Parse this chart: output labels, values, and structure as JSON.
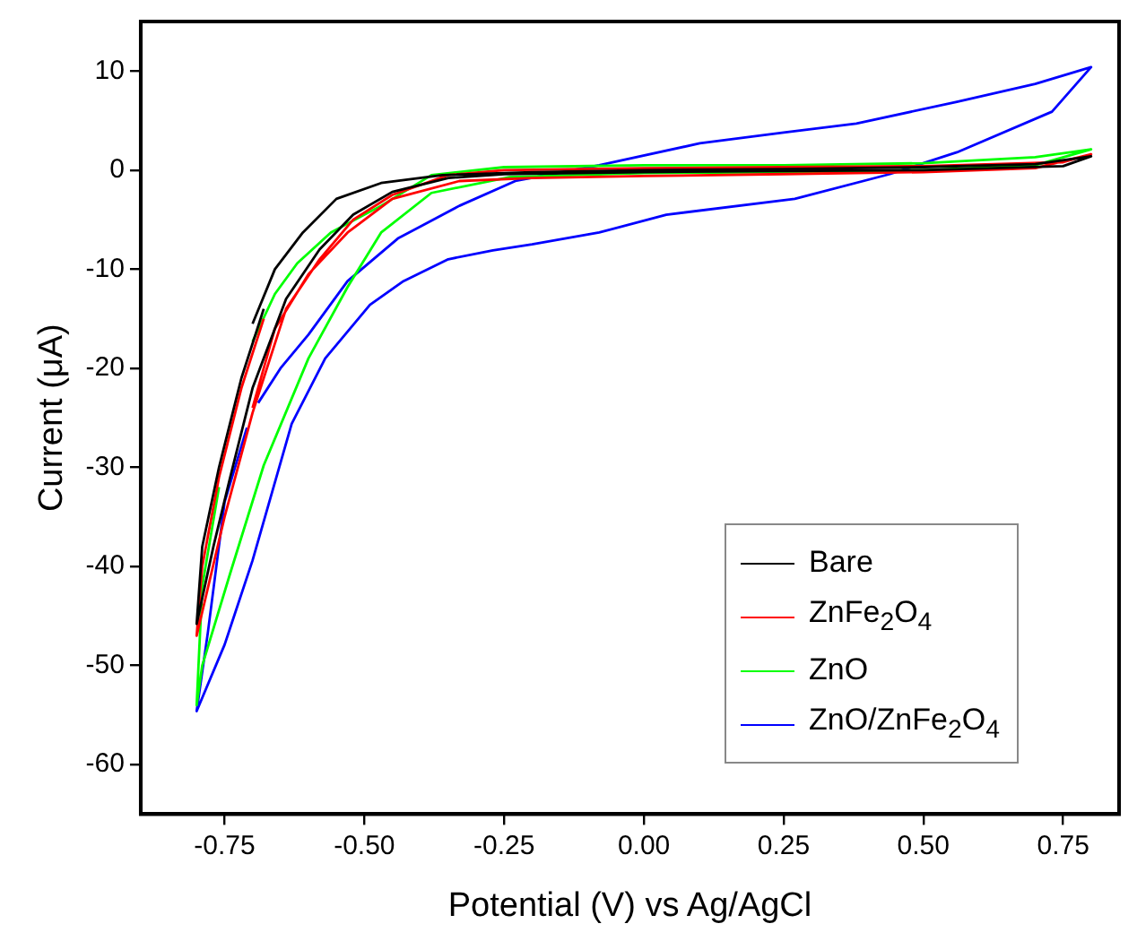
{
  "chart_data": {
    "type": "line",
    "xlabel": "Potential (V) vs Ag/AgCl",
    "ylabel": "Current (μA)",
    "xlim": [
      -0.9,
      0.85
    ],
    "ylim": [
      -65,
      15
    ],
    "xticks": [
      {
        "value": -0.75,
        "label": "-0.75"
      },
      {
        "value": -0.5,
        "label": "-0.50"
      },
      {
        "value": -0.25,
        "label": "-0.25"
      },
      {
        "value": 0,
        "label": "0.00"
      },
      {
        "value": 0.25,
        "label": "0.25"
      },
      {
        "value": 0.5,
        "label": "0.50"
      },
      {
        "value": 0.75,
        "label": "0.75"
      }
    ],
    "yticks": [
      -60,
      -50,
      -40,
      -30,
      -20,
      -10,
      0,
      10
    ],
    "grid": false,
    "legend": "bottom right",
    "marker": "none",
    "line_style": "solid",
    "series": [
      {
        "name": "Bare",
        "color": "#000000",
        "x": [
          -0.7,
          -0.66,
          -0.61,
          -0.55,
          -0.47,
          -0.36,
          -0.2,
          0,
          0.25,
          0.5,
          0.7,
          0.8,
          0.75,
          0.5,
          0.25,
          0,
          -0.25,
          -0.35,
          -0.45,
          -0.52,
          -0.58,
          -0.64,
          -0.7,
          -0.74,
          -0.77,
          -0.8,
          -0.79,
          -0.76,
          -0.72,
          -0.68
        ],
        "values": [
          -15.5,
          -10,
          -6.3,
          -2.9,
          -1.3,
          -0.5,
          -0.2,
          0,
          0.1,
          0.3,
          0.6,
          1.4,
          0.4,
          0,
          -0.1,
          -0.2,
          -0.4,
          -0.8,
          -2.2,
          -4.5,
          -8,
          -13,
          -22,
          -31,
          -38,
          -45.8,
          -38,
          -30,
          -21,
          -14
        ]
      },
      {
        "name": "ZnFe$_{2}$O$_{4}$",
        "color": "#ff0000",
        "x": [
          -0.7,
          -0.66,
          -0.6,
          -0.53,
          -0.45,
          -0.33,
          -0.2,
          0,
          0.25,
          0.5,
          0.7,
          0.8,
          0.75,
          0.5,
          0.25,
          0,
          -0.25,
          -0.35,
          -0.45,
          -0.52,
          -0.58,
          -0.64,
          -0.7,
          -0.75,
          -0.8,
          -0.79,
          -0.76,
          -0.72,
          -0.68
        ],
        "values": [
          -24,
          -16,
          -10.5,
          -6.3,
          -2.9,
          -1.1,
          -0.8,
          -0.6,
          -0.4,
          -0.2,
          0.2,
          1.6,
          0.8,
          0.4,
          0.3,
          0.2,
          0,
          -0.5,
          -2.5,
          -5,
          -9,
          -14,
          -24.5,
          -35,
          -47,
          -40,
          -31,
          -22,
          -15
        ]
      },
      {
        "name": "ZnO",
        "color": "#00ff00",
        "x": [
          -0.7,
          -0.66,
          -0.62,
          -0.56,
          -0.47,
          -0.38,
          -0.25,
          0,
          0.25,
          0.5,
          0.7,
          0.8,
          0.7,
          0.5,
          0.25,
          0,
          -0.24,
          -0.38,
          -0.47,
          -0.53,
          -0.6,
          -0.68,
          -0.74,
          -0.79,
          -0.8,
          -0.79,
          -0.76
        ],
        "values": [
          -17.3,
          -12.5,
          -9.4,
          -6.3,
          -3.6,
          -0.5,
          0.3,
          0.5,
          0.5,
          0.7,
          1.3,
          2.1,
          0.5,
          0,
          -0.2,
          -0.3,
          -0.7,
          -2.3,
          -6.3,
          -11.8,
          -19,
          -29.8,
          -40.7,
          -50,
          -54,
          -42,
          -32
        ]
      },
      {
        "name": "ZnO/ZnFe$_{2}$O$_{4}$",
        "color": "#0000ff",
        "x": [
          -0.69,
          -0.65,
          -0.6,
          -0.53,
          -0.44,
          -0.33,
          -0.23,
          -0.08,
          0.1,
          0.25,
          0.38,
          0.56,
          0.7,
          0.8,
          0.73,
          0.56,
          0.44,
          0.27,
          0.04,
          -0.08,
          -0.2,
          -0.27,
          -0.35,
          -0.43,
          -0.49,
          -0.57,
          -0.63,
          -0.7,
          -0.75,
          -0.8,
          -0.78,
          -0.75,
          -0.71
        ],
        "values": [
          -23.5,
          -20,
          -16.6,
          -11.2,
          -6.9,
          -3.6,
          -1.1,
          0.5,
          2.7,
          3.8,
          4.7,
          6.9,
          8.7,
          10.4,
          5.9,
          1.8,
          -0.4,
          -2.9,
          -4.5,
          -6.3,
          -7.5,
          -8.1,
          -9.0,
          -11.2,
          -13.6,
          -19,
          -25.6,
          -39.4,
          -47.9,
          -54.6,
          -46.7,
          -33.5,
          -26
        ]
      }
    ]
  }
}
